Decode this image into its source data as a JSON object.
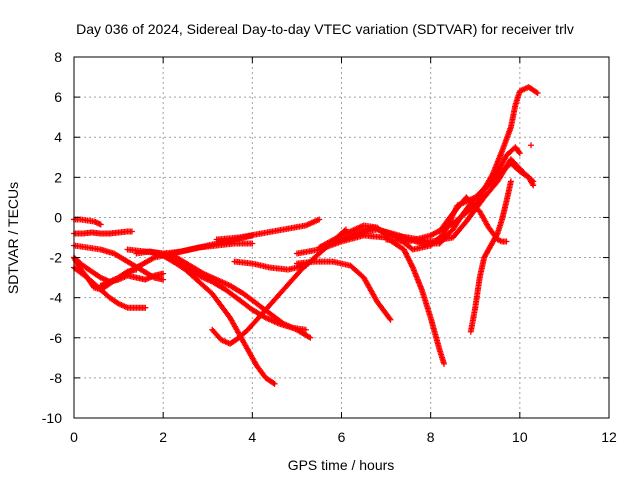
{
  "chart_data": {
    "type": "scatter",
    "title": "Day 036 of 2024, Sidereal Day-to-day VTEC variation (SDTVAR) for receiver trlv",
    "xlabel": "GPS time / hours",
    "ylabel": "SDTVAR / TECUs",
    "xlim": [
      0,
      12
    ],
    "ylim": [
      -10,
      8
    ],
    "x_ticks": [
      0,
      2,
      4,
      6,
      8,
      10,
      12
    ],
    "y_ticks": [
      -10,
      -8,
      -6,
      -4,
      -2,
      0,
      2,
      4,
      6,
      8
    ],
    "grid": true,
    "marker": "+",
    "color": "#ff0000",
    "series": [
      {
        "x": [
          0.0,
          0.3,
          0.6,
          0.8,
          1.0,
          1.2,
          1.4,
          1.6
        ],
        "y": [
          -2.5,
          -3.0,
          -3.6,
          -4.0,
          -4.3,
          -4.5,
          -4.5,
          -4.5
        ]
      },
      {
        "x": [
          0.0,
          0.2,
          0.4,
          0.6,
          0.8,
          1.0,
          1.2,
          1.4,
          1.6,
          1.8,
          2.0
        ],
        "y": [
          -2.0,
          -2.4,
          -2.7,
          -3.0,
          -3.2,
          -3.1,
          -2.9,
          -3.0,
          -3.1,
          -2.9,
          -2.8
        ]
      },
      {
        "x": [
          0.0,
          0.15,
          0.3,
          0.45,
          0.6,
          0.8,
          1.0,
          1.2,
          1.4
        ],
        "y": [
          -2.0,
          -2.6,
          -3.0,
          -3.5,
          -3.6,
          -3.3,
          -3.0,
          -2.7,
          -2.6
        ]
      },
      {
        "x": [
          0.0,
          0.3,
          0.6,
          0.9,
          1.2,
          1.5,
          1.8,
          2.0
        ],
        "y": [
          -1.4,
          -1.5,
          -1.6,
          -1.8,
          -2.2,
          -2.6,
          -3.0,
          -3.1
        ]
      },
      {
        "x": [
          0.0,
          0.2,
          0.4,
          0.6,
          0.8,
          1.0,
          1.2,
          1.3
        ],
        "y": [
          -0.8,
          -0.8,
          -0.75,
          -0.8,
          -0.8,
          -0.75,
          -0.7,
          -0.7
        ]
      },
      {
        "x": [
          0.0,
          0.15,
          0.3,
          0.45,
          0.6
        ],
        "y": [
          -0.1,
          -0.1,
          -0.15,
          -0.2,
          -0.35
        ]
      },
      {
        "x": [
          0.6,
          1.0,
          1.4,
          1.8,
          2.2,
          2.6,
          3.0,
          3.4,
          3.8,
          4.0
        ],
        "y": [
          -3.4,
          -3.0,
          -2.5,
          -2.0,
          -1.8,
          -1.6,
          -1.4,
          -1.2,
          -1.0,
          -0.9
        ]
      },
      {
        "x": [
          1.2,
          1.6,
          2.0,
          2.4,
          2.8,
          3.2,
          3.6,
          4.0
        ],
        "y": [
          -1.6,
          -1.7,
          -1.8,
          -1.7,
          -1.5,
          -1.4,
          -1.3,
          -1.3
        ]
      },
      {
        "x": [
          1.4,
          1.7,
          2.0,
          2.3,
          2.5,
          2.7,
          2.9,
          3.1,
          3.3,
          3.5,
          3.7,
          3.9,
          4.1,
          4.3,
          4.5
        ],
        "y": [
          -1.8,
          -1.7,
          -1.9,
          -2.3,
          -2.6,
          -3.0,
          -3.4,
          -3.8,
          -4.4,
          -5.0,
          -5.8,
          -6.6,
          -7.4,
          -8.0,
          -8.3
        ]
      },
      {
        "x": [
          1.7,
          2.0,
          2.3,
          2.6,
          2.9,
          3.2,
          3.5,
          3.8,
          4.1,
          4.4,
          4.7,
          5.0,
          5.3
        ],
        "y": [
          -1.7,
          -1.8,
          -2.0,
          -2.4,
          -2.8,
          -3.1,
          -3.4,
          -3.8,
          -4.3,
          -4.8,
          -5.3,
          -5.6,
          -6.0
        ]
      },
      {
        "x": [
          1.9,
          2.2,
          2.5,
          2.8,
          3.1,
          3.4,
          3.7,
          4.0,
          4.3,
          4.6,
          4.9,
          5.2
        ],
        "y": [
          -1.8,
          -2.1,
          -2.5,
          -2.9,
          -3.2,
          -3.6,
          -4.1,
          -4.6,
          -5.0,
          -5.3,
          -5.5,
          -5.6
        ]
      },
      {
        "x": [
          3.1,
          3.3,
          3.5,
          3.7,
          3.9,
          4.1,
          4.3,
          4.5,
          4.7,
          4.9,
          5.1,
          5.3,
          5.5,
          5.7,
          5.9,
          6.1
        ],
        "y": [
          -5.6,
          -6.1,
          -6.3,
          -6.0,
          -5.6,
          -5.1,
          -4.6,
          -4.1,
          -3.6,
          -3.1,
          -2.6,
          -2.2,
          -1.8,
          -1.4,
          -1.0,
          -0.6
        ]
      },
      {
        "x": [
          3.2,
          3.7,
          4.2,
          4.7,
          5.2,
          5.5
        ],
        "y": [
          -1.1,
          -1.0,
          -0.8,
          -0.6,
          -0.4,
          -0.1
        ]
      },
      {
        "x": [
          3.6,
          4.0,
          4.4,
          4.8,
          5.2
        ],
        "y": [
          -2.2,
          -2.3,
          -2.5,
          -2.6,
          -2.4
        ]
      },
      {
        "x": [
          5.0,
          5.4,
          5.8,
          6.2,
          6.5,
          6.8,
          7.1
        ],
        "y": [
          -2.3,
          -2.2,
          -2.2,
          -2.4,
          -3.0,
          -4.2,
          -5.1
        ]
      },
      {
        "x": [
          5.0,
          5.5,
          6.0,
          6.5,
          7.0,
          7.4,
          7.6,
          7.8,
          8.0,
          8.2,
          8.3
        ],
        "y": [
          -1.8,
          -1.6,
          -1.2,
          -0.9,
          -1.0,
          -1.6,
          -2.5,
          -3.6,
          -5.0,
          -6.6,
          -7.3
        ]
      },
      {
        "x": [
          5.5,
          6.0,
          6.5,
          6.8,
          7.0,
          7.5,
          8.0,
          8.5,
          8.8,
          9.2,
          9.5,
          9.8,
          10.1,
          10.3
        ],
        "y": [
          -1.5,
          -0.9,
          -0.4,
          -0.5,
          -0.9,
          -1.0,
          -1.2,
          -1.0,
          -0.2,
          1.0,
          1.8,
          2.9,
          2.2,
          1.8
        ]
      },
      {
        "x": [
          5.8,
          6.3,
          6.8,
          7.3,
          7.8,
          8.2,
          8.5,
          8.7,
          8.9,
          9.1,
          9.3,
          9.5,
          9.7,
          9.8,
          10.0,
          10.2,
          10.3
        ],
        "y": [
          -1.3,
          -0.8,
          -0.6,
          -0.9,
          -1.3,
          -1.3,
          -0.6,
          0.1,
          0.7,
          1.2,
          1.7,
          2.1,
          2.5,
          2.7,
          2.3,
          2.0,
          1.6
        ]
      },
      {
        "x": [
          6.2,
          6.7,
          7.2,
          7.6,
          8.0,
          8.3,
          8.6,
          9.0,
          9.4,
          9.7,
          9.9,
          10.0
        ],
        "y": [
          -0.9,
          -0.5,
          -0.9,
          -1.6,
          -1.4,
          -0.8,
          0.6,
          1.0,
          1.8,
          3.1,
          3.5,
          3.2
        ]
      },
      {
        "x": [
          7.0,
          7.5,
          8.0,
          8.5,
          9.0,
          9.2,
          9.4,
          9.6,
          9.8,
          9.9,
          10.0,
          10.2,
          10.4
        ],
        "y": [
          -1.1,
          -1.2,
          -0.9,
          -0.3,
          0.6,
          1.4,
          2.2,
          3.3,
          4.5,
          5.6,
          6.3,
          6.5,
          6.2
        ]
      },
      {
        "x": [
          8.2,
          8.5,
          8.8,
          9.1,
          9.3,
          9.5,
          9.6,
          9.7
        ],
        "y": [
          -0.7,
          0.2,
          1.0,
          0.3,
          -0.5,
          -1.1,
          -1.2,
          -1.2
        ]
      },
      {
        "x": [
          8.9,
          9.0,
          9.1,
          9.2,
          9.3,
          9.4,
          9.5,
          9.6,
          9.7,
          9.8
        ],
        "y": [
          -5.7,
          -4.5,
          -3.0,
          -2.0,
          -1.6,
          -1.2,
          -0.8,
          -0.1,
          0.8,
          1.8
        ]
      },
      {
        "x": [
          10.25
        ],
        "y": [
          3.6
        ]
      }
    ]
  }
}
